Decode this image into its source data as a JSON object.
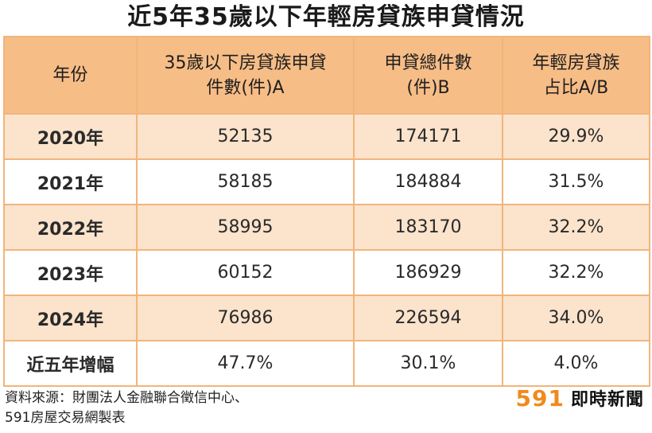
{
  "title": "近5年35歲以下年輕房貸族申貸情況",
  "table": {
    "headers": {
      "year": [
        "年份"
      ],
      "young": [
        "35歲以下房貸族申貸",
        "件數(件)A"
      ],
      "total": [
        "申貸總件數",
        "(件)B"
      ],
      "share": [
        "年輕房貸族",
        "占比A/B"
      ]
    },
    "rows": [
      {
        "year": "2020年",
        "young": "52135",
        "total": "174171",
        "share": "29.9%"
      },
      {
        "year": "2021年",
        "young": "58185",
        "total": "184884",
        "share": "31.5%"
      },
      {
        "year": "2022年",
        "young": "58995",
        "total": "183170",
        "share": "32.2%"
      },
      {
        "year": "2023年",
        "young": "60152",
        "total": "186929",
        "share": "32.2%"
      },
      {
        "year": "2024年",
        "young": "76986",
        "total": "226594",
        "share": "34.0%"
      }
    ],
    "growth": {
      "year": "近五年增幅",
      "young": "47.7%",
      "total": "30.1%",
      "share": "4.0%"
    }
  },
  "footer": {
    "source_lines": [
      "資料來源：財團法人金融聯合徵信中心、",
      "591房屋交易網製表"
    ],
    "brand_number": "591",
    "brand_text": "即時新聞",
    "brand_color": "#f08a1c"
  },
  "colors": {
    "header_bg": "#f7bd86",
    "row_alt_bg": "#fbe3cc",
    "border": "#f1b57c"
  }
}
